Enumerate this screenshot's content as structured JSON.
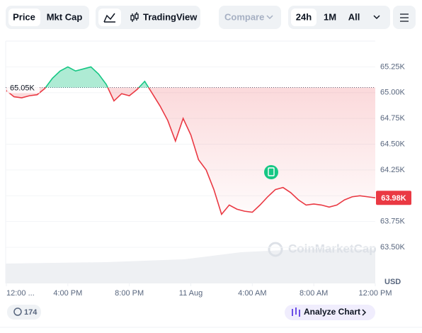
{
  "ui": {
    "price": "Price",
    "mkt_cap": "Mkt Cap",
    "tradingview": "TradingView",
    "compare": "Compare",
    "range_24h": "24h",
    "range_1m": "1M",
    "range_all": "All",
    "currency": "USD",
    "count": "174",
    "analyze": "Analyze Chart",
    "watermark": "CoinMarketCap"
  },
  "chart_data": {
    "type": "line",
    "x": [
      0,
      0.5,
      1,
      1.5,
      2,
      2.5,
      3,
      3.5,
      4,
      4.5,
      5,
      5.5,
      6,
      6.5,
      7,
      7.5,
      8,
      8.5,
      9,
      9.5,
      10,
      10.5,
      11,
      11.5,
      12,
      12.5,
      13,
      13.5,
      14,
      14.5,
      15,
      15.5,
      16,
      16.5,
      17,
      17.5,
      18,
      18.5,
      19,
      19.5,
      20,
      20.5,
      21,
      21.5,
      22,
      22.5,
      23,
      23.5,
      24
    ],
    "series": [
      {
        "color": "#ea3943",
        "values": [
          65020,
          64960,
          64950,
          64970,
          64980,
          65040,
          65140,
          65210,
          65250,
          65210,
          65230,
          65250,
          65180,
          65080,
          64920,
          64990,
          64970,
          65030,
          65110,
          64990,
          64870,
          64730,
          64530,
          64750,
          64590,
          64350,
          64250,
          64060,
          63820,
          63910,
          63870,
          63850,
          63840,
          63910,
          63990,
          64060,
          64080,
          64030,
          63960,
          63910,
          63920,
          63910,
          63890,
          63910,
          63960,
          63990,
          64000,
          63990,
          63980
        ]
      }
    ],
    "up_color": "#16c784",
    "xlim": [
      0,
      24
    ],
    "xticks": [
      {
        "value": 0,
        "label": "12:00 ..."
      },
      {
        "value": 4,
        "label": "4:00 PM"
      },
      {
        "value": 8,
        "label": "8:00 PM"
      },
      {
        "value": 12,
        "label": "11 Aug"
      },
      {
        "value": 16,
        "label": "4:00 AM"
      },
      {
        "value": 20,
        "label": "8:00 AM"
      },
      {
        "value": 24,
        "label": "12:00 PM"
      }
    ],
    "ylim": [
      63150,
      65500
    ],
    "yticks": [
      {
        "value": 63500,
        "label": "63.50K"
      },
      {
        "value": 63750,
        "label": "63.75K"
      },
      {
        "value": 64000,
        "label": "64.00K"
      },
      {
        "value": 64250,
        "label": "64.25K"
      },
      {
        "value": 64500,
        "label": "64.50K"
      },
      {
        "value": 64750,
        "label": "64.75K"
      },
      {
        "value": 65000,
        "label": "65.00K"
      },
      {
        "value": 65250,
        "label": "65.25K"
      }
    ],
    "baseline": {
      "value": 65050,
      "label": "65.05K"
    },
    "current": {
      "value": 63980,
      "label": "63.98K"
    },
    "grid": true
  }
}
